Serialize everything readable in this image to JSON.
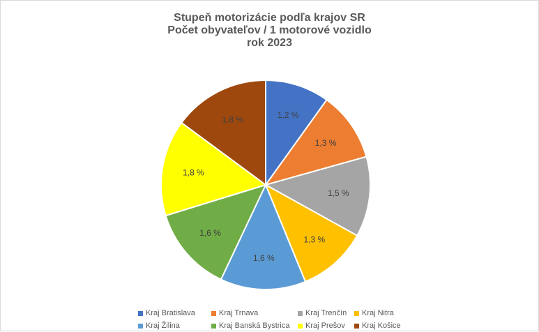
{
  "chart_data": {
    "type": "pie",
    "title_lines": [
      "Stupeň motorizácie podľa krajov SR",
      "Počet obyvateľov / 1 motorové vozidlo",
      "rok 2023"
    ],
    "categories": [
      "Kraj Bratislava",
      "Kraj Trnava",
      "Kraj Trenčín",
      "Kraj Nitra",
      "Kraj Žilina",
      "Kraj Banská Bystrica",
      "Kraj Prešov",
      "Kraj Košice"
    ],
    "values": [
      1.2,
      1.3,
      1.5,
      1.3,
      1.6,
      1.6,
      1.8,
      1.8
    ],
    "labels": [
      "1,2 %",
      "1,3 %",
      "1,5 %",
      "1,3 %",
      "1,6 %",
      "1,6 %",
      "1,8 %",
      "1,8 %"
    ],
    "colors": [
      "#4472c4",
      "#ed7d31",
      "#a5a5a5",
      "#ffc000",
      "#5b9bd5",
      "#70ad47",
      "#ffff00",
      "#9e480e"
    ],
    "legend_position": "bottom"
  }
}
